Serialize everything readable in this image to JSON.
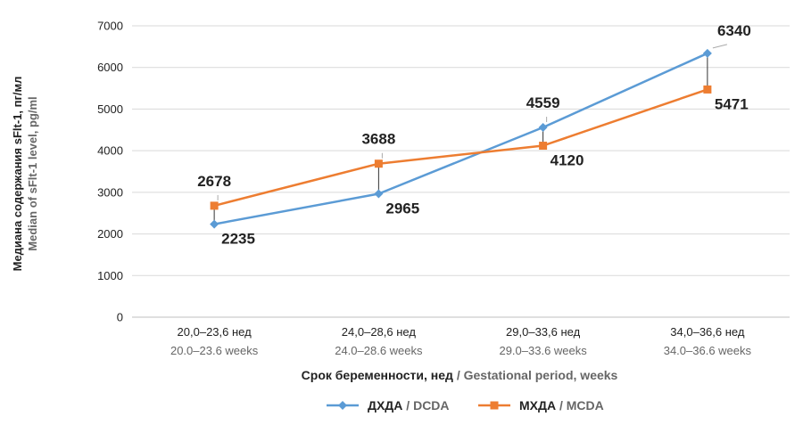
{
  "chart_data": {
    "type": "line",
    "categories": [
      {
        "ru": "20,0–23,6 нед",
        "en": "20.0–23.6 weeks"
      },
      {
        "ru": "24,0–28,6 нед",
        "en": "24.0–28.6 weeks"
      },
      {
        "ru": "29,0–33,6 нед",
        "en": "29.0–33.6 weeks"
      },
      {
        "ru": "34,0–36,6 нед",
        "en": "34.0–36.6 weeks"
      }
    ],
    "series": [
      {
        "name_ru": "ДХДА",
        "name_en": "DCDA",
        "color": "#5b9bd5",
        "marker": "diamond",
        "values": [
          2235,
          2965,
          4559,
          6340
        ]
      },
      {
        "name_ru": "МХДА",
        "name_en": "MCDA",
        "color": "#ed7d31",
        "marker": "square",
        "values": [
          2678,
          3688,
          4120,
          5471
        ]
      }
    ],
    "data_labels": [
      {
        "series": 0,
        "category": 0,
        "text": "2235",
        "placement": "below-right"
      },
      {
        "series": 1,
        "category": 0,
        "text": "2678",
        "placement": "above"
      },
      {
        "series": 0,
        "category": 1,
        "text": "2965",
        "placement": "below-right"
      },
      {
        "series": 1,
        "category": 1,
        "text": "3688",
        "placement": "above"
      },
      {
        "series": 0,
        "category": 2,
        "text": "4559",
        "placement": "above"
      },
      {
        "series": 1,
        "category": 2,
        "text": "4120",
        "placement": "below-right"
      },
      {
        "series": 0,
        "category": 3,
        "text": "6340",
        "placement": "above-right"
      },
      {
        "series": 1,
        "category": 3,
        "text": "5471",
        "placement": "below-right"
      }
    ],
    "ylim": [
      0,
      7000
    ],
    "yticks": [
      0,
      1000,
      2000,
      3000,
      4000,
      5000,
      6000,
      7000
    ],
    "ylabel_ru": "Медиана содержания sFlt-1, пг/мл",
    "ylabel_en": "Median of sFlt-1 level, pg/ml",
    "xlabel_ru": "Срок беременности, нед",
    "xlabel_en": "Gestational period, weeks",
    "separator": " / ",
    "grid": "horizontal",
    "legend_position": "bottom-center"
  }
}
